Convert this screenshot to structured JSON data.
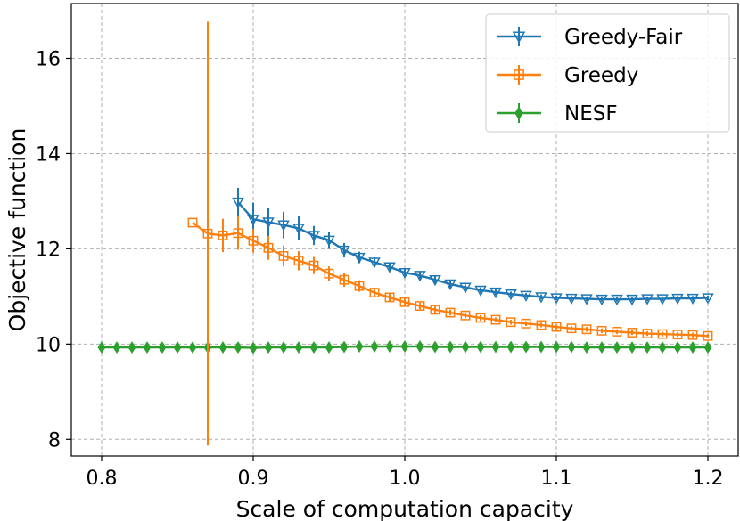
{
  "chart_data": {
    "type": "line",
    "title": "",
    "xlabel": "Scale of computation capacity",
    "ylabel": "Objective function",
    "xlim": [
      0.78,
      1.22
    ],
    "ylim": [
      7.65,
      17.15
    ],
    "xticks": [
      "0.8",
      "0.9",
      "1.0",
      "1.1",
      "1.2"
    ],
    "yticks": [
      "8",
      "10",
      "12",
      "14",
      "16"
    ],
    "grid": true,
    "legend_position": "top-right",
    "series": [
      {
        "name": "Greedy-Fair",
        "color": "#1f77b4",
        "marker": "triangle-down",
        "x": [
          0.89,
          0.9,
          0.91,
          0.92,
          0.93,
          0.94,
          0.95,
          0.96,
          0.97,
          0.98,
          0.99,
          1.0,
          1.01,
          1.02,
          1.03,
          1.04,
          1.05,
          1.06,
          1.07,
          1.08,
          1.09,
          1.1,
          1.11,
          1.12,
          1.13,
          1.14,
          1.15,
          1.16,
          1.17,
          1.18,
          1.19,
          1.2
        ],
        "y": [
          12.98,
          12.62,
          12.56,
          12.5,
          12.43,
          12.28,
          12.18,
          11.97,
          11.82,
          11.72,
          11.62,
          11.5,
          11.44,
          11.35,
          11.26,
          11.19,
          11.13,
          11.09,
          11.05,
          11.02,
          10.99,
          10.97,
          10.96,
          10.95,
          10.94,
          10.94,
          10.94,
          10.95,
          10.95,
          10.96,
          10.96,
          10.97
        ],
        "err": [
          0.3,
          0.35,
          0.3,
          0.28,
          0.25,
          0.2,
          0.18,
          0.15,
          0.12,
          0.1,
          0.09,
          0.08,
          0.08,
          0.07,
          0.07,
          0.06,
          0.06,
          0.06,
          0.05,
          0.05,
          0.05,
          0.05,
          0.05,
          0.05,
          0.05,
          0.05,
          0.05,
          0.05,
          0.05,
          0.05,
          0.05,
          0.05
        ]
      },
      {
        "name": "Greedy",
        "color": "#ff7f0e",
        "marker": "square",
        "x": [
          0.86,
          0.87,
          0.88,
          0.89,
          0.9,
          0.91,
          0.92,
          0.93,
          0.94,
          0.95,
          0.96,
          0.97,
          0.98,
          0.99,
          1.0,
          1.01,
          1.02,
          1.03,
          1.04,
          1.05,
          1.06,
          1.07,
          1.08,
          1.09,
          1.1,
          1.11,
          1.12,
          1.13,
          1.14,
          1.15,
          1.16,
          1.17,
          1.18,
          1.19,
          1.2
        ],
        "y": [
          12.55,
          12.32,
          12.28,
          12.33,
          12.17,
          12.02,
          11.85,
          11.75,
          11.65,
          11.48,
          11.35,
          11.22,
          11.08,
          10.98,
          10.88,
          10.8,
          10.72,
          10.66,
          10.6,
          10.55,
          10.51,
          10.46,
          10.43,
          10.4,
          10.36,
          10.33,
          10.31,
          10.28,
          10.26,
          10.24,
          10.22,
          10.21,
          10.2,
          10.19,
          10.17
        ],
        "err": [
          0.0,
          4.45,
          0.35,
          0.35,
          0.25,
          0.25,
          0.22,
          0.2,
          0.18,
          0.15,
          0.15,
          0.12,
          0.1,
          0.09,
          0.08,
          0.07,
          0.07,
          0.06,
          0.06,
          0.06,
          0.05,
          0.05,
          0.05,
          0.05,
          0.05,
          0.05,
          0.05,
          0.05,
          0.05,
          0.05,
          0.05,
          0.05,
          0.05,
          0.05,
          0.05
        ]
      },
      {
        "name": "NESF",
        "color": "#2ca02c",
        "marker": "diamond",
        "x": [
          0.8,
          0.81,
          0.82,
          0.83,
          0.84,
          0.85,
          0.86,
          0.87,
          0.88,
          0.89,
          0.9,
          0.91,
          0.92,
          0.93,
          0.94,
          0.95,
          0.96,
          0.97,
          0.98,
          0.99,
          1.0,
          1.01,
          1.02,
          1.03,
          1.04,
          1.05,
          1.06,
          1.07,
          1.08,
          1.09,
          1.1,
          1.11,
          1.12,
          1.13,
          1.14,
          1.15,
          1.16,
          1.17,
          1.18,
          1.19,
          1.2
        ],
        "y": [
          9.93,
          9.93,
          9.93,
          9.93,
          9.93,
          9.93,
          9.93,
          9.93,
          9.93,
          9.93,
          9.92,
          9.93,
          9.93,
          9.93,
          9.93,
          9.93,
          9.94,
          9.95,
          9.95,
          9.95,
          9.95,
          9.95,
          9.94,
          9.94,
          9.94,
          9.94,
          9.94,
          9.94,
          9.94,
          9.94,
          9.94,
          9.94,
          9.93,
          9.93,
          9.93,
          9.93,
          9.93,
          9.93,
          9.93,
          9.93,
          9.93
        ],
        "err": [
          0.04,
          0.04,
          0.04,
          0.04,
          0.04,
          0.04,
          0.04,
          0.04,
          0.04,
          0.04,
          0.04,
          0.04,
          0.04,
          0.04,
          0.04,
          0.04,
          0.05,
          0.05,
          0.05,
          0.05,
          0.05,
          0.05,
          0.04,
          0.04,
          0.04,
          0.04,
          0.04,
          0.04,
          0.04,
          0.04,
          0.04,
          0.04,
          0.04,
          0.04,
          0.04,
          0.04,
          0.04,
          0.04,
          0.04,
          0.04,
          0.04
        ]
      }
    ]
  }
}
